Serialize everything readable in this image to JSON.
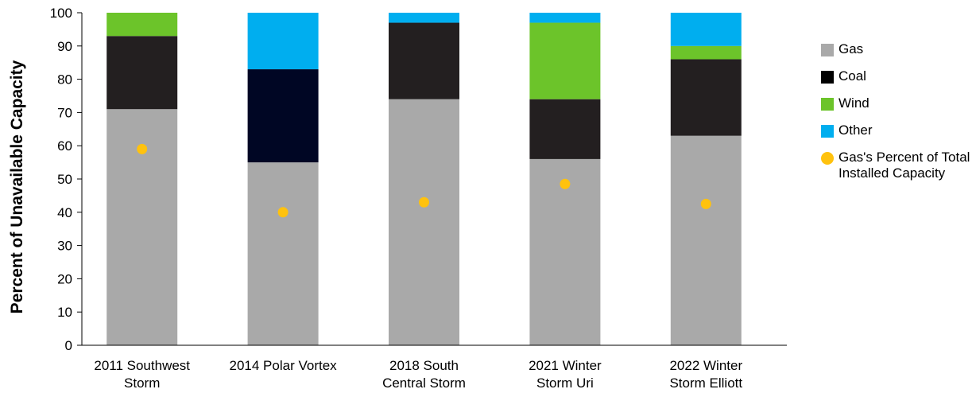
{
  "chart_data": {
    "type": "bar",
    "stacked": true,
    "categories": [
      [
        "2011 Southwest",
        "Storm"
      ],
      [
        "2014 Polar Vortex",
        ""
      ],
      [
        "2018 South",
        "Central Storm"
      ],
      [
        "2021 Winter",
        "Storm Uri"
      ],
      [
        "2022 Winter",
        "Storm Elliott"
      ]
    ],
    "series": [
      {
        "name": "Gas",
        "color": "#a9a9a9",
        "values": [
          71,
          55,
          74,
          56,
          63
        ]
      },
      {
        "name": "Coal",
        "color": "#231f20",
        "values": [
          22,
          28,
          23,
          18,
          23
        ]
      },
      {
        "name": "Wind",
        "color": "#6cc42a",
        "values": [
          7,
          0,
          0,
          23,
          4
        ]
      },
      {
        "name": "Other",
        "color": "#00aeef",
        "values": [
          0,
          17,
          3,
          3,
          10
        ]
      }
    ],
    "scatter_series": {
      "name": "Gas's Percent of Total Installed Capacity",
      "color": "#ffc20e",
      "values": [
        59,
        40,
        43,
        48.5,
        42.5
      ]
    },
    "bar_colors_override": {
      "1": {
        "Coal": "#000624"
      }
    },
    "ylabel": "Percent of Unavailable Capacity",
    "ylim": [
      0,
      100
    ],
    "yticks": [
      0,
      10,
      20,
      30,
      40,
      50,
      60,
      70,
      80,
      90,
      100
    ],
    "grid": false,
    "legend_position": "right",
    "legend": [
      {
        "label": "Gas",
        "color": "#a9a9a9",
        "shape": "square"
      },
      {
        "label": "Coal",
        "color": "#000000",
        "shape": "square"
      },
      {
        "label": "Wind",
        "color": "#6cc42a",
        "shape": "square"
      },
      {
        "label": "Other",
        "color": "#00aeef",
        "shape": "square"
      },
      {
        "label": "Gas's Percent of Total Installed Capacity",
        "color": "#ffc20e",
        "shape": "circle"
      }
    ]
  }
}
